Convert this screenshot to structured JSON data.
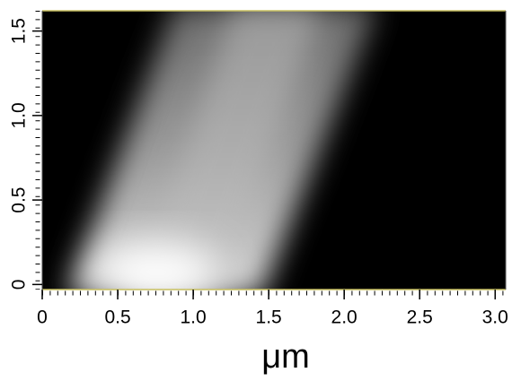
{
  "chart_data": {
    "type": "image",
    "xlabel": "μm",
    "xlim": [
      0,
      3.07
    ],
    "ylim": [
      -0.03,
      1.62
    ],
    "xticks": [
      0,
      0.5,
      {
        "value": 1,
        "label": "1.0"
      },
      1.5,
      {
        "value": 2,
        "label": "2.0"
      },
      2.5,
      {
        "value": 3,
        "label": "3.0"
      }
    ],
    "yticks": [
      0,
      0.5,
      {
        "value": 1,
        "label": "1.0"
      },
      1.5
    ]
  }
}
